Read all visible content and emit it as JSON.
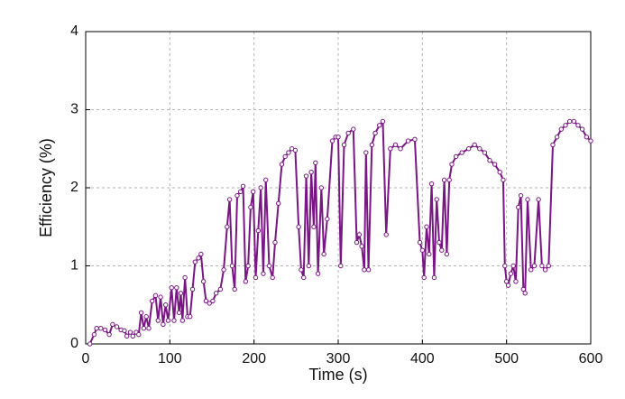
{
  "chart_data": {
    "type": "line",
    "xlabel": "Time (s)",
    "ylabel": "Efficiency (%)",
    "x": [
      5,
      10,
      13,
      18,
      23,
      28,
      32,
      37,
      42,
      46,
      49,
      53,
      56,
      60,
      63,
      66,
      69,
      72,
      75,
      79,
      83,
      86,
      89,
      92,
      95,
      98,
      102,
      105,
      108,
      111,
      113,
      115,
      118,
      121,
      124,
      127,
      130,
      134,
      137,
      140,
      143,
      147,
      151,
      155,
      160,
      164,
      168,
      171,
      174,
      177,
      180,
      184,
      187,
      190,
      193,
      196,
      199,
      202,
      205,
      208,
      211,
      214,
      218,
      222,
      225,
      229,
      233,
      237,
      241,
      245,
      249,
      253,
      256,
      259,
      262,
      265,
      268,
      271,
      273,
      276,
      280,
      283,
      287,
      293,
      297,
      300,
      303,
      307,
      312,
      318,
      322,
      325,
      328,
      331,
      333,
      336,
      340,
      344,
      349,
      353,
      357,
      362,
      368,
      374,
      383,
      391,
      397,
      400,
      402,
      405,
      408,
      411,
      414,
      417,
      420,
      423,
      426,
      429,
      432,
      435,
      440,
      447,
      455,
      462,
      468,
      474,
      480,
      486,
      492,
      496,
      498,
      500,
      502,
      505,
      508,
      511,
      514,
      517,
      520,
      522,
      525,
      529,
      533,
      538,
      542,
      546,
      550,
      555,
      560,
      565,
      570,
      575,
      580,
      585,
      590,
      595,
      600
    ],
    "values": [
      0,
      0.12,
      0.2,
      0.2,
      0.18,
      0.12,
      0.25,
      0.22,
      0.18,
      0.17,
      0.1,
      0.15,
      0.1,
      0.15,
      0.12,
      0.4,
      0.2,
      0.35,
      0.2,
      0.55,
      0.62,
      0.3,
      0.6,
      0.25,
      0.5,
      0.3,
      0.72,
      0.3,
      0.72,
      0.4,
      0.65,
      0.3,
      0.85,
      0.35,
      0.35,
      0.7,
      1.05,
      1.1,
      1.15,
      0.8,
      0.55,
      0.52,
      0.55,
      0.65,
      0.7,
      0.95,
      1.5,
      1.85,
      1.0,
      0.7,
      1.9,
      1.95,
      2.02,
      0.8,
      1.0,
      1.75,
      1.95,
      0.85,
      1.45,
      2.0,
      0.9,
      2.1,
      1.0,
      0.85,
      1.3,
      1.8,
      2.3,
      2.4,
      2.45,
      2.5,
      2.48,
      1.5,
      0.95,
      0.85,
      2.15,
      1.0,
      2.2,
      1.5,
      2.32,
      0.9,
      2.0,
      1.15,
      1.6,
      2.6,
      2.65,
      2.65,
      1.0,
      2.55,
      2.7,
      2.75,
      1.3,
      1.4,
      1.25,
      0.95,
      2.45,
      0.95,
      2.55,
      2.7,
      2.8,
      2.85,
      1.4,
      2.5,
      2.55,
      2.5,
      2.6,
      2.62,
      1.3,
      1.2,
      0.85,
      1.5,
      1.15,
      2.05,
      0.85,
      1.85,
      1.3,
      1.2,
      2.1,
      1.15,
      2.1,
      2.3,
      2.4,
      2.45,
      2.5,
      2.55,
      2.5,
      2.45,
      2.35,
      2.3,
      2.2,
      2.1,
      1.0,
      0.8,
      0.75,
      0.9,
      1.0,
      0.8,
      1.75,
      1.9,
      0.7,
      0.65,
      1.85,
      0.95,
      1.0,
      1.85,
      1.0,
      0.95,
      1.0,
      2.55,
      2.65,
      2.75,
      2.8,
      2.85,
      2.85,
      2.8,
      2.75,
      2.65,
      2.6
    ],
    "color": "#7a1585",
    "xlim": [
      0,
      600
    ],
    "ylim": [
      0,
      4
    ],
    "xticks": [
      0,
      100,
      200,
      300,
      400,
      500,
      600
    ],
    "yticks": [
      0,
      1,
      2,
      3,
      4
    ],
    "grid": true
  }
}
